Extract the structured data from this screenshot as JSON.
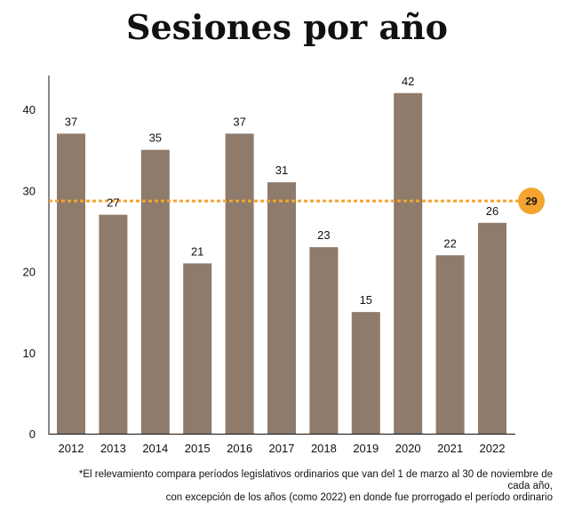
{
  "title": "Sesiones por año",
  "footnote": {
    "line1": "*El relevamiento compara períodos legislativos ordinarios que van del 1 de marzo al 30 de noviembre de",
    "line2": "cada año,",
    "line3": "con excepción de los años (como 2022) en donde fue prorrogado el período ordinario"
  },
  "colors": {
    "bar": "#8e7b6c",
    "average": "#f3a530",
    "axis": "#111111"
  },
  "chart_data": {
    "type": "bar",
    "title": "Sesiones por año",
    "categories": [
      "2012",
      "2013",
      "2014",
      "2015",
      "2016",
      "2017",
      "2018",
      "2019",
      "2020",
      "2021",
      "2022"
    ],
    "values": [
      37,
      27,
      35,
      21,
      37,
      31,
      23,
      15,
      42,
      22,
      26
    ],
    "data_labels": [
      "37",
      "27",
      "35",
      "21",
      "37",
      "31",
      "23",
      "15",
      "42",
      "22",
      "26"
    ],
    "yticks": [
      0,
      10,
      20,
      30,
      40
    ],
    "ylim": [
      0,
      44
    ],
    "xlabel": "",
    "ylabel": "",
    "grid": false,
    "average_line": {
      "value": 28.7,
      "label": "29",
      "style": "dotted"
    }
  }
}
